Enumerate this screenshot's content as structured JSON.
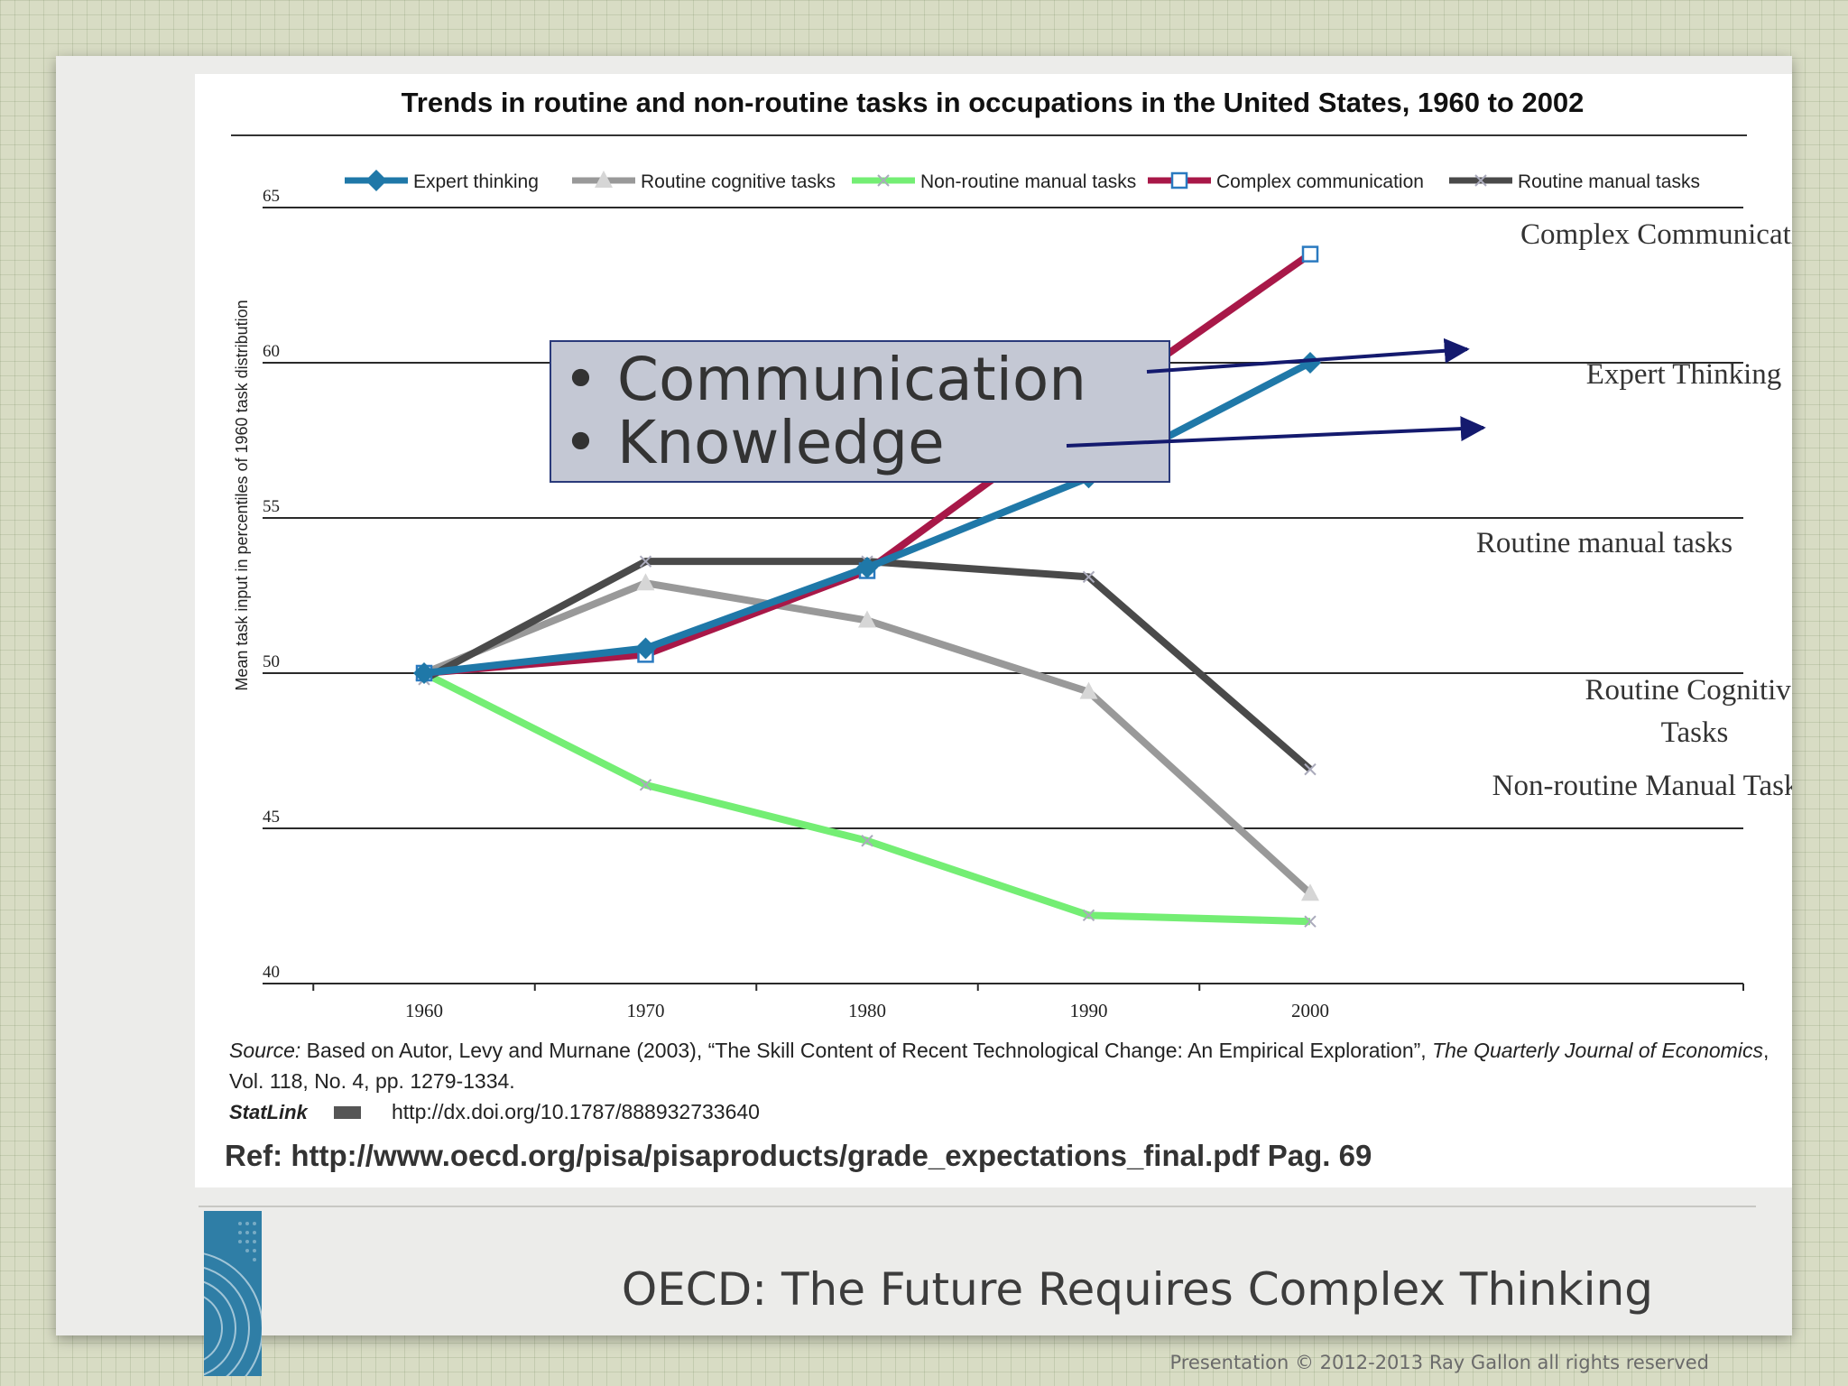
{
  "slide": {
    "title": "OECD: The Future Requires Complex Thinking",
    "copyright": "Presentation © 2012-2013 Ray Gallon all rights reserved"
  },
  "callout": {
    "bullets": [
      "Communication",
      "Knowledge"
    ],
    "background": "#c4c8d4",
    "border": "#2a3a7a",
    "arrow_color": "#141a6e"
  },
  "source": {
    "prefix": "Source:",
    "text": " Based on Autor, Levy and Murnane (2003), “The Skill Content of Recent Technological Change: An Empirical Exploration”, ",
    "journal": "The Quarterly Journal of Economics",
    "line2": "Vol. 118, No. 4, pp. 1279-1334.",
    "statlink_label": "StatLink",
    "statlink_url": "http://dx.doi.org/10.1787/888932733640",
    "ref": "Ref: http://www.oecd.org/pisa/pisaproducts/grade_expectations_final.pdf Pag. 69"
  },
  "chart_data": {
    "type": "line",
    "title": "Trends in routine and non-routine tasks in occupations in the United States, 1960 to 2002",
    "ylabel": "Mean task input in percentiles of 1960 task distribution",
    "xlabel": "",
    "x": [
      1960,
      1970,
      1980,
      1990,
      2000
    ],
    "ylim": [
      40,
      65
    ],
    "yticks": [
      40,
      45,
      50,
      55,
      60,
      65
    ],
    "grid": true,
    "legend_position": "top",
    "series": [
      {
        "name": "Expert thinking",
        "color": "#1f78a8",
        "marker": "diamond",
        "values": [
          50,
          50.8,
          53.4,
          56.3,
          60
        ],
        "annotation": "Expert Thinking"
      },
      {
        "name": "Routine cognitive tasks",
        "color": "#999999",
        "marker": "triangle",
        "values": [
          50,
          52.9,
          51.7,
          49.4,
          42.9
        ],
        "annotation": "Routine Cognitive Tasks"
      },
      {
        "name": "Non-routine manual tasks",
        "color": "#74ee74",
        "marker": "x",
        "values": [
          50,
          46.4,
          44.6,
          42.2,
          42
        ],
        "annotation": "Non-routine Manual Tasks"
      },
      {
        "name": "Complex communication",
        "color": "#a81848",
        "marker": "square",
        "values": [
          50,
          50.6,
          53.3,
          58.5,
          63.5
        ],
        "annotation": "Complex Communication"
      },
      {
        "name": "Routine manual tasks",
        "color": "#4a4a4a",
        "marker": "x",
        "values": [
          49.8,
          53.6,
          53.6,
          53.1,
          46.9
        ],
        "annotation": "Routine manual tasks"
      }
    ]
  }
}
